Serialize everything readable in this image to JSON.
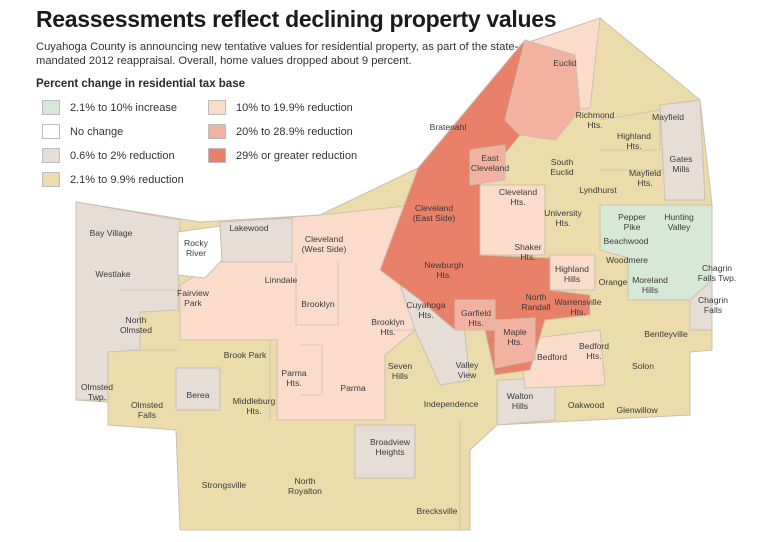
{
  "title": "Reassessments reflect declining property values",
  "subtitle": "Cuyahoga County is announcing new tentative values for residential property, as part of the state-mandated 2012 reappraisal. Overall, home values dropped about 9 percent.",
  "legend": {
    "title": "Percent change in residential tax base",
    "items": [
      {
        "label": "2.1% to 10% increase",
        "color": "#d8e8d7"
      },
      {
        "label": "No change",
        "color": "#ffffff"
      },
      {
        "label": "0.6% to 2% reduction",
        "color": "#e6ddd6"
      },
      {
        "label": "2.1% to 9.9% reduction",
        "color": "#ecdcab"
      },
      {
        "label": "10% to 19.9% reduction",
        "color": "#fbdccb"
      },
      {
        "label": "20% to 28.9% reduction",
        "color": "#f3b1a2"
      },
      {
        "label": "29% or greater reduction",
        "color": "#e8806a"
      }
    ]
  },
  "places": {
    "euclid": "Euclid",
    "richmond": "Richmond\nHts.",
    "mayfield": "Mayfield",
    "highland_hts": "Highland\nHts.",
    "bratenahl": "Bratenahl",
    "east_cleveland": "East\nCleveland",
    "south_euclid": "South\nEuclid",
    "gates_mills": "Gates\nMills",
    "mayfield_hts": "Mayfield\nHts.",
    "lyndhurst": "Lyndhurst",
    "cleveland_hts": "Cleveland\nHts.",
    "cleveland_east": "Cleveland\n(East Side)",
    "university_hts": "University\nHts.",
    "pepper_pike": "Pepper\nPike",
    "hunting_valley": "Hunting\nValley",
    "bay_village": "Bay Village",
    "rocky_river": "Rocky\nRiver",
    "lakewood": "Lakewood",
    "cleveland_west": "Cleveland\n(West Side)",
    "shaker_hts": "Shaker\nHts.",
    "beachwood": "Beachwood",
    "westlake": "Westlake",
    "woodmere": "Woodmere",
    "newburgh_hts": "Newburgh\nHts.",
    "highland_hills": "Highland\nHills",
    "linndale": "Linndale",
    "moreland_hills": "Moreland\nHills",
    "chagrin_falls_twp": "Chagrin\nFalls Twp.",
    "orange": "Orange",
    "fairview_park": "Fairview\nPark",
    "cuyahoga_hts": "Cuyahoga\nHts.",
    "brooklyn": "Brooklyn",
    "north_randall": "North\nRandall",
    "warrensville_hts": "Warrensville\nHts.",
    "chagrin_falls": "Chagrin\nFalls",
    "north_olmsted": "North\nOlmsted",
    "garfield_hts": "Garfield\nHts.",
    "brooklyn_hts": "Brooklyn\nHts.",
    "bentleyville": "Bentleyville",
    "maple_hts": "Maple\nHts.",
    "brook_park": "Brook Park",
    "bedford_hts": "Bedford\nHts.",
    "parma_hts": "Parma\nHts.",
    "seven_hills": "Seven\nHills",
    "valley_view": "Valley\nView",
    "bedford": "Bedford",
    "solon": "Solon",
    "parma": "Parma",
    "olmsted_twp": "Olmsted\nTwp.",
    "berea": "Berea",
    "middleburg_hts": "Middleburg\nHts.",
    "independence": "Independence",
    "walton_hills": "Walton\nHills",
    "oakwood": "Oakwood",
    "glenwillow": "Glenwillow",
    "olmsted_falls": "Olmsted\nFalls",
    "broadview_hts": "Broadview\nHeights",
    "strongsville": "Strongsville",
    "north_royalton": "North\nRoyalton",
    "brecksville": "Brecksville"
  }
}
